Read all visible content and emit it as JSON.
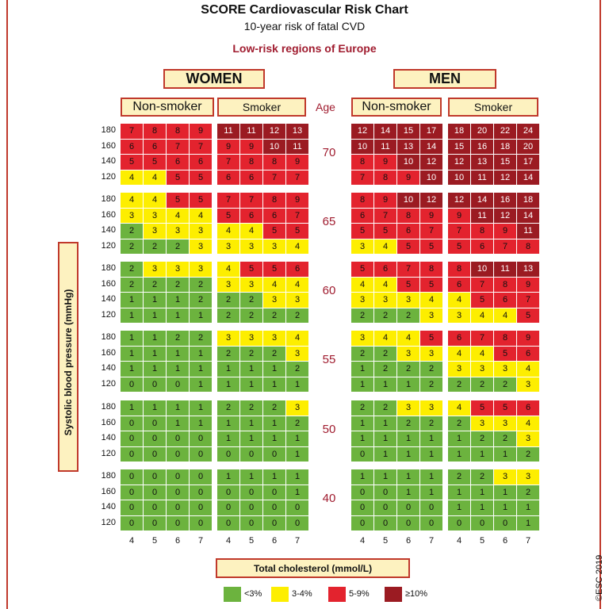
{
  "title": "SCORE Cardiovascular Risk Chart",
  "subtitle": "10-year risk of fatal CVD",
  "region": "Low-risk regions of Europe",
  "sex_labels": {
    "women": "WOMEN",
    "men": "MEN"
  },
  "smoking_labels": {
    "non_smoker": "Non-smoker",
    "smoker": "Smoker"
  },
  "age_header": "Age",
  "copyright": "©ESC 2019",
  "colors": {
    "green": "#6cb33e",
    "yellow": "#fdee00",
    "red": "#e3232e",
    "dark_red": "#9b1b22",
    "frame": "#c0392b",
    "label_bg": "#fdf2c0"
  },
  "chart_data": {
    "type": "table",
    "xlabel": "Total cholesterol (mmol/L)",
    "ylabel": "Systolic blood pressure (mmHg)",
    "cholesterol": [
      4,
      5,
      6,
      7
    ],
    "sbp": [
      180,
      160,
      140,
      120
    ],
    "ages": [
      70,
      65,
      60,
      55,
      50,
      40
    ],
    "legend": [
      {
        "label": "<3%",
        "color": "#6cb33e"
      },
      {
        "label": "3-4%",
        "color": "#fdee00"
      },
      {
        "label": "5-9%",
        "color": "#e3232e"
      },
      {
        "label": "≥10%",
        "color": "#9b1b22"
      }
    ],
    "women_non_smoker": {
      "70": [
        [
          7,
          8,
          8,
          9
        ],
        [
          6,
          6,
          7,
          7
        ],
        [
          5,
          5,
          6,
          6
        ],
        [
          4,
          4,
          5,
          5
        ]
      ],
      "65": [
        [
          4,
          4,
          5,
          5
        ],
        [
          3,
          3,
          4,
          4
        ],
        [
          2,
          3,
          3,
          3
        ],
        [
          2,
          2,
          2,
          3
        ]
      ],
      "60": [
        [
          2,
          3,
          3,
          3
        ],
        [
          2,
          2,
          2,
          2
        ],
        [
          1,
          1,
          1,
          2
        ],
        [
          1,
          1,
          1,
          1
        ]
      ],
      "55": [
        [
          1,
          1,
          2,
          2
        ],
        [
          1,
          1,
          1,
          1
        ],
        [
          1,
          1,
          1,
          1
        ],
        [
          0,
          0,
          0,
          1
        ]
      ],
      "50": [
        [
          1,
          1,
          1,
          1
        ],
        [
          0,
          0,
          1,
          1
        ],
        [
          0,
          0,
          0,
          0
        ],
        [
          0,
          0,
          0,
          0
        ]
      ],
      "40": [
        [
          0,
          0,
          0,
          0
        ],
        [
          0,
          0,
          0,
          0
        ],
        [
          0,
          0,
          0,
          0
        ],
        [
          0,
          0,
          0,
          0
        ]
      ]
    },
    "women_smoker": {
      "70": [
        [
          11,
          11,
          12,
          13
        ],
        [
          9,
          9,
          10,
          11
        ],
        [
          7,
          8,
          8,
          9
        ],
        [
          6,
          6,
          7,
          7
        ]
      ],
      "65": [
        [
          7,
          7,
          8,
          9
        ],
        [
          5,
          6,
          6,
          7
        ],
        [
          4,
          4,
          5,
          5
        ],
        [
          3,
          3,
          3,
          4
        ]
      ],
      "60": [
        [
          4,
          5,
          5,
          6
        ],
        [
          3,
          3,
          4,
          4
        ],
        [
          2,
          2,
          3,
          3
        ],
        [
          2,
          2,
          2,
          2
        ]
      ],
      "55": [
        [
          3,
          3,
          3,
          4
        ],
        [
          2,
          2,
          2,
          3
        ],
        [
          1,
          1,
          1,
          2
        ],
        [
          1,
          1,
          1,
          1
        ]
      ],
      "50": [
        [
          2,
          2,
          2,
          3
        ],
        [
          1,
          1,
          1,
          2
        ],
        [
          1,
          1,
          1,
          1
        ],
        [
          0,
          0,
          0,
          1
        ]
      ],
      "40": [
        [
          1,
          1,
          1,
          1
        ],
        [
          0,
          0,
          0,
          1
        ],
        [
          0,
          0,
          0,
          0
        ],
        [
          0,
          0,
          0,
          0
        ]
      ]
    },
    "men_non_smoker": {
      "70": [
        [
          12,
          14,
          15,
          17
        ],
        [
          10,
          11,
          13,
          14
        ],
        [
          8,
          9,
          10,
          12
        ],
        [
          7,
          8,
          9,
          10
        ]
      ],
      "65": [
        [
          8,
          9,
          10,
          12
        ],
        [
          6,
          7,
          8,
          9
        ],
        [
          5,
          5,
          6,
          7
        ],
        [
          3,
          4,
          5,
          5
        ]
      ],
      "60": [
        [
          5,
          6,
          7,
          8
        ],
        [
          4,
          4,
          5,
          5
        ],
        [
          3,
          3,
          3,
          4
        ],
        [
          2,
          2,
          2,
          3
        ]
      ],
      "55": [
        [
          3,
          4,
          4,
          5
        ],
        [
          2,
          2,
          3,
          3
        ],
        [
          1,
          2,
          2,
          2
        ],
        [
          1,
          1,
          1,
          2
        ]
      ],
      "50": [
        [
          2,
          2,
          3,
          3
        ],
        [
          1,
          1,
          2,
          2
        ],
        [
          1,
          1,
          1,
          1
        ],
        [
          0,
          1,
          1,
          1
        ]
      ],
      "40": [
        [
          1,
          1,
          1,
          1
        ],
        [
          0,
          0,
          1,
          1
        ],
        [
          0,
          0,
          0,
          0
        ],
        [
          0,
          0,
          0,
          0
        ]
      ]
    },
    "men_smoker": {
      "70": [
        [
          18,
          20,
          22,
          24
        ],
        [
          15,
          16,
          18,
          20
        ],
        [
          12,
          13,
          15,
          17
        ],
        [
          10,
          11,
          12,
          14
        ]
      ],
      "65": [
        [
          12,
          14,
          16,
          18
        ],
        [
          9,
          11,
          12,
          14
        ],
        [
          7,
          8,
          9,
          11
        ],
        [
          5,
          6,
          7,
          8
        ]
      ],
      "60": [
        [
          8,
          10,
          11,
          13
        ],
        [
          6,
          7,
          8,
          9
        ],
        [
          4,
          5,
          6,
          7
        ],
        [
          3,
          4,
          4,
          5
        ]
      ],
      "55": [
        [
          6,
          7,
          8,
          9
        ],
        [
          4,
          4,
          5,
          6
        ],
        [
          3,
          3,
          3,
          4
        ],
        [
          2,
          2,
          2,
          3
        ]
      ],
      "50": [
        [
          4,
          5,
          5,
          6
        ],
        [
          2,
          3,
          3,
          4
        ],
        [
          1,
          2,
          2,
          3
        ],
        [
          1,
          1,
          1,
          2
        ]
      ],
      "40": [
        [
          2,
          2,
          3,
          3
        ],
        [
          1,
          1,
          1,
          2
        ],
        [
          1,
          1,
          1,
          1
        ],
        [
          0,
          0,
          0,
          1
        ]
      ]
    }
  }
}
